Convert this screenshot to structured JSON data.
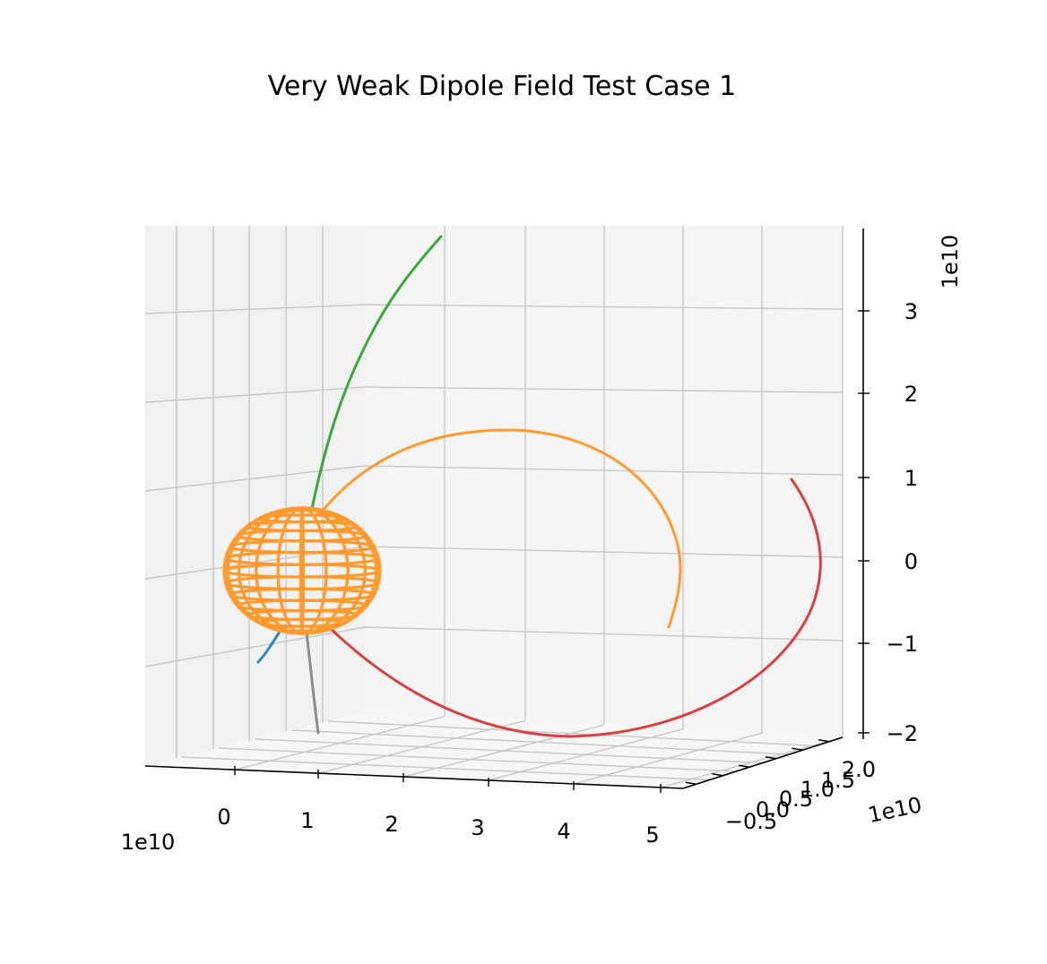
{
  "chart_data": {
    "type": "line",
    "title": "Very Weak Dipole Field Test Case 1",
    "xlabel": "",
    "ylabel": "",
    "zlabel": "",
    "x_offset": "1e10",
    "y_offset": "1e10",
    "z_offset": "1e10",
    "x_ticks": [
      "0",
      "1",
      "2",
      "3",
      "4",
      "5"
    ],
    "y_ticks": [
      "−0.5",
      "0.0",
      "0.5",
      "1.0",
      "1.5",
      "2.0"
    ],
    "z_ticks": [
      "−2",
      "−1",
      "0",
      "1",
      "2",
      "3"
    ],
    "grid": true,
    "colors": {
      "pane_left": "#f2f2f2",
      "pane_back": "#f5f5f5",
      "pane_floor": "#f7f7f7",
      "sphere": "#ff9a2e"
    },
    "series": [
      {
        "color": "#2a87c3",
        "role": "blue trajectory"
      },
      {
        "color": "#3aa83a",
        "role": "green trajectory"
      },
      {
        "color": "#ff9a2e",
        "role": "orange trajectory"
      },
      {
        "color": "#d94141",
        "role": "red trajectory"
      },
      {
        "color": "#8c8c8c",
        "role": "gray trajectory"
      }
    ]
  }
}
